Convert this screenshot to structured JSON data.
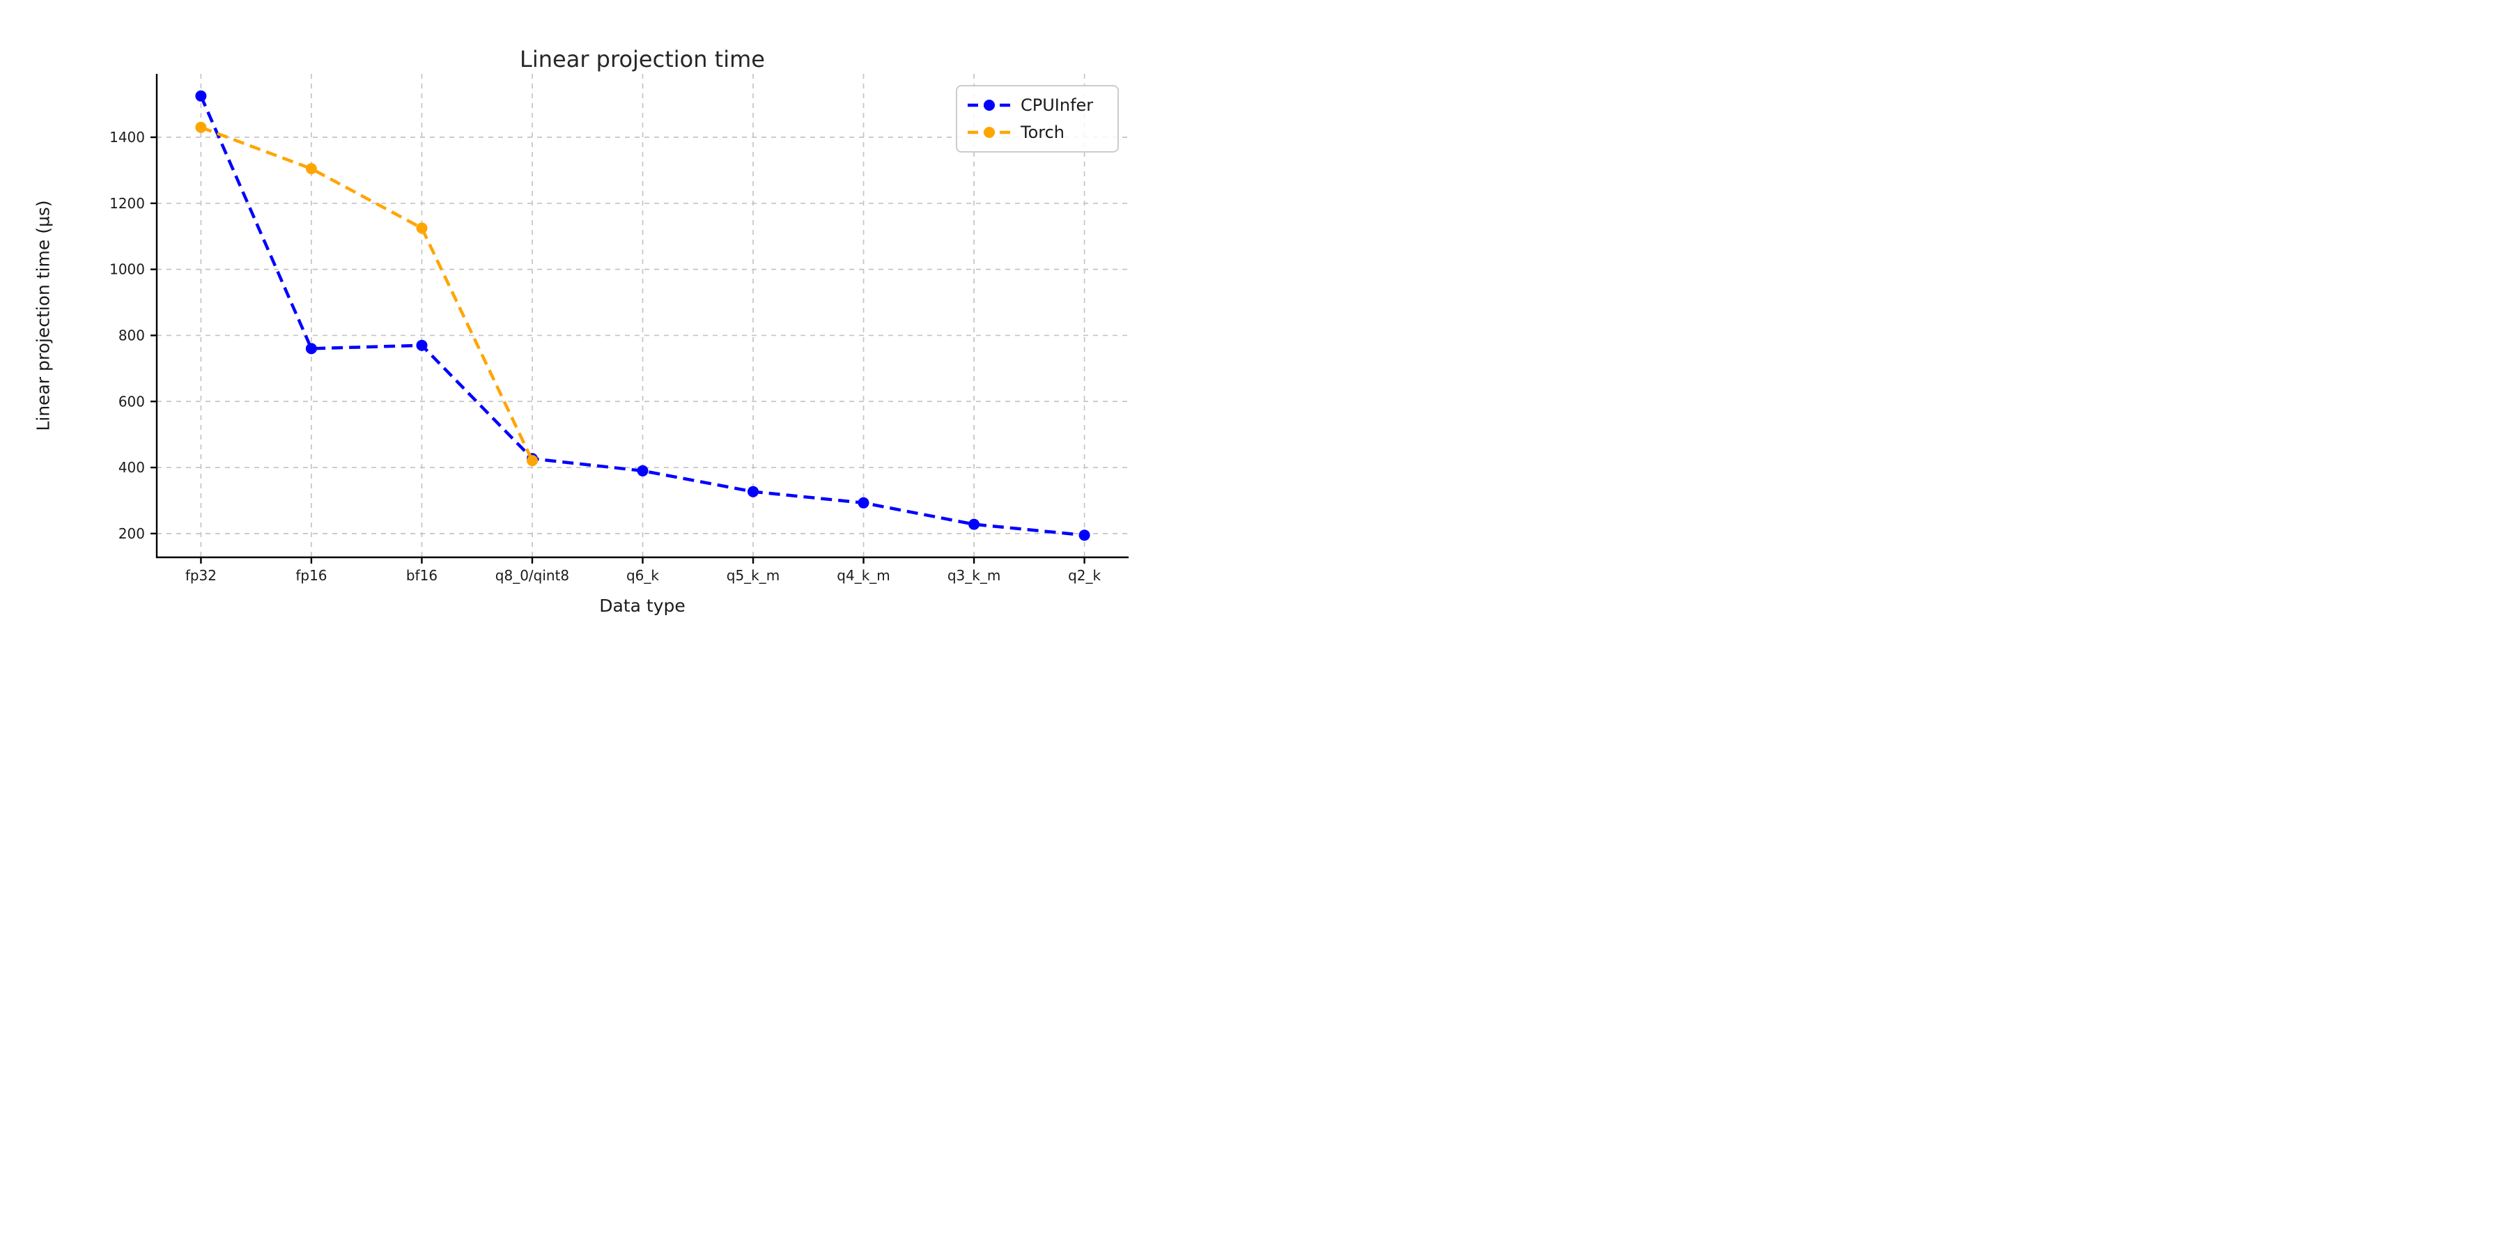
{
  "figure": {
    "background": "#ffffff"
  },
  "chart_data": {
    "type": "line",
    "title": "Linear projection time",
    "xlabel": "Data type",
    "ylabel": "Linear projection time (µs)",
    "categories": [
      "fp32",
      "fp16",
      "bf16",
      "q8_0/qint8",
      "q6_k",
      "q5_k_m",
      "q4_k_m",
      "q3_k_m",
      "q2_k"
    ],
    "series": [
      {
        "name": "CPUInfer",
        "color": "#0000ff",
        "values": [
          1525,
          760,
          770,
          427,
          390,
          327,
          293,
          228,
          195
        ]
      },
      {
        "name": "Torch",
        "color": "#ffa500",
        "values": [
          1430,
          1305,
          1125,
          421
        ]
      }
    ],
    "yticks": [
      200,
      400,
      600,
      800,
      1000,
      1200,
      1400
    ],
    "ylim": [
      128,
      1592
    ],
    "grid": true,
    "grid_color": "#c4c4c4",
    "line_style": "dashed",
    "marker": "circle",
    "legend": {
      "position": "upper right",
      "labels": [
        "CPUInfer",
        "Torch"
      ]
    },
    "text_color": "#1a1a1a",
    "spine_color": "#000000"
  }
}
